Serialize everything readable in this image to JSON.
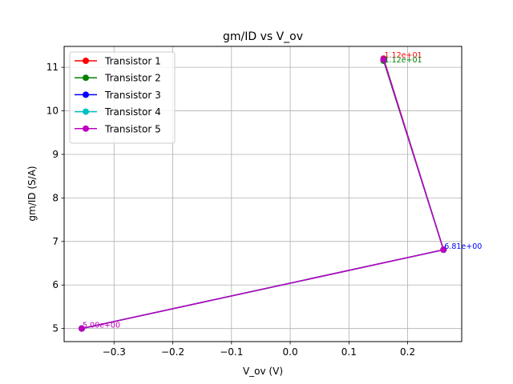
{
  "chart_data": {
    "type": "line",
    "title": "gm/ID vs V_ov",
    "xlabel": "V_ov (V)",
    "ylabel": "gm/ID (S/A)",
    "xlim": [
      -0.385,
      0.292
    ],
    "ylim": [
      4.7,
      11.48
    ],
    "xticks": [
      -0.3,
      -0.2,
      -0.1,
      0.0,
      0.1,
      0.2
    ],
    "xtick_labels": [
      "−0.3",
      "−0.2",
      "−0.1",
      "0.0",
      "0.1",
      "0.2"
    ],
    "yticks": [
      5,
      6,
      7,
      8,
      9,
      10,
      11
    ],
    "ytick_labels": [
      "5",
      "6",
      "7",
      "8",
      "9",
      "10",
      "11"
    ],
    "grid": true,
    "legend_position": "top-left",
    "series": [
      {
        "name": "Transistor 1",
        "color": "#ff0000",
        "x": [
          0.159,
          0.261,
          -0.355
        ],
        "y": [
          11.2,
          6.81,
          5.0
        ],
        "labels": [
          "1.12e+01",
          "",
          ""
        ]
      },
      {
        "name": "Transistor 2",
        "color": "#008000",
        "x": [
          0.159,
          0.261,
          -0.355
        ],
        "y": [
          11.15,
          6.81,
          5.0
        ],
        "labels": [
          "1.12e+01",
          "",
          ""
        ]
      },
      {
        "name": "Transistor 3",
        "color": "#0000ff",
        "x": [
          0.159,
          0.261,
          -0.355
        ],
        "y": [
          11.18,
          6.81,
          5.0
        ],
        "labels": [
          "",
          "6.81e+00",
          ""
        ]
      },
      {
        "name": "Transistor 4",
        "color": "#00bfbf",
        "x": [
          0.159,
          0.261,
          -0.355
        ],
        "y": [
          11.18,
          6.81,
          5.0
        ],
        "labels": [
          "",
          "",
          ""
        ]
      },
      {
        "name": "Transistor 5",
        "color": "#bf00bf",
        "x": [
          0.159,
          0.261,
          -0.355
        ],
        "y": [
          11.18,
          6.81,
          5.0
        ],
        "labels": [
          "",
          "",
          "5.00e+00"
        ]
      }
    ]
  }
}
